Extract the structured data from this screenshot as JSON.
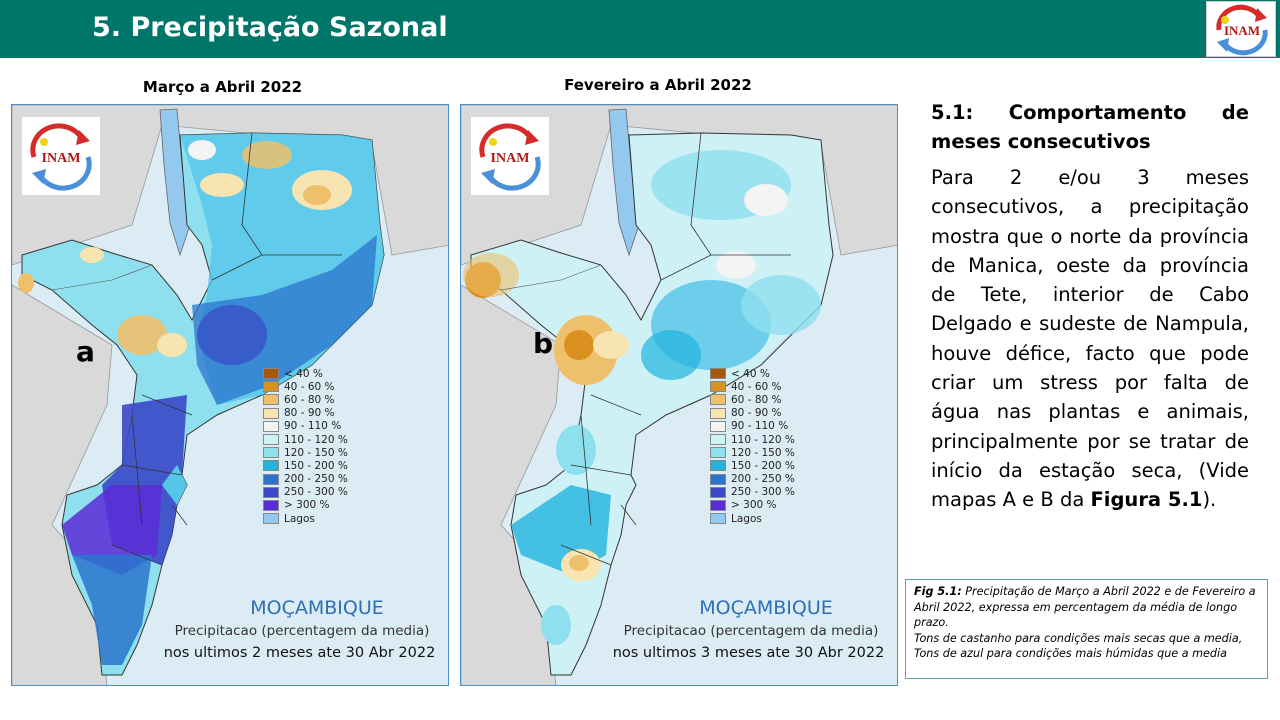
{
  "header": {
    "title": "5. Precipitação Sazonal",
    "logo_text": "INAM"
  },
  "maps": [
    {
      "title": "Março a Abril 2022",
      "letter": "a",
      "logo_text": "INAM",
      "country": "MOÇAMBIQUE",
      "caption_line1": "Precipitacao (percentagem da media)",
      "caption_line2": "nos ultimos 2 meses ate 30 Abr 2022"
    },
    {
      "title": "Fevereiro a Abril 2022",
      "letter": "b",
      "logo_text": "INAM",
      "country": "MOÇAMBIQUE",
      "caption_line1": "Precipitacao (percentagem da media)",
      "caption_line2": "nos ultimos 3 meses ate 30 Abr 2022"
    }
  ],
  "legend": [
    {
      "label": "< 40 %",
      "color": "#a5570a"
    },
    {
      "label": "40 - 60 %",
      "color": "#d9901f"
    },
    {
      "label": "60 - 80 %",
      "color": "#eec06b"
    },
    {
      "label": "80 - 90 %",
      "color": "#f8e4b0"
    },
    {
      "label": "90 - 110 %",
      "color": "#f4f4f4"
    },
    {
      "label": "110 - 120 %",
      "color": "#cdf1f5"
    },
    {
      "label": "120 - 150 %",
      "color": "#8ee0ef"
    },
    {
      "label": "150 - 200 %",
      "color": "#21b4df"
    },
    {
      "label": "200 - 250 %",
      "color": "#2b74cc"
    },
    {
      "label": "250 - 300 %",
      "color": "#3b48c8"
    },
    {
      "label": "> 300 %",
      "color": "#5a2bd6"
    },
    {
      "label": "Lagos",
      "color": "#93c8ef"
    }
  ],
  "section": {
    "title": "5.1: Comportamento de meses consecutivos",
    "body_before": "Para 2 e/ou 3 meses consecutivos, a precipitação mostra que o norte da província de Manica, oeste da província de Tete, interior de Cabo Delgado e sudeste de Nampula, houve défice, facto que pode criar um stress por falta de água nas plantas e animais, principalmente por se tratar de início da estação seca, (Vide mapas A e B da ",
    "body_bold": "Figura 5.1",
    "body_after": ")."
  },
  "figure_caption": {
    "label": "Fig 5.1:",
    "text": " Precipitação de Março a Abril 2022 e de Fevereiro a Abril 2022, expressa em percentagem da média de longo prazo.",
    "line2": "Tons de castanho para condições mais secas que a media,",
    "line3": "Tons de azul para condições mais húmidas que a media"
  },
  "colors": {
    "header_bg": "#00766b",
    "panel_border": "#4a8fc5",
    "country_text": "#2e6fb5"
  }
}
